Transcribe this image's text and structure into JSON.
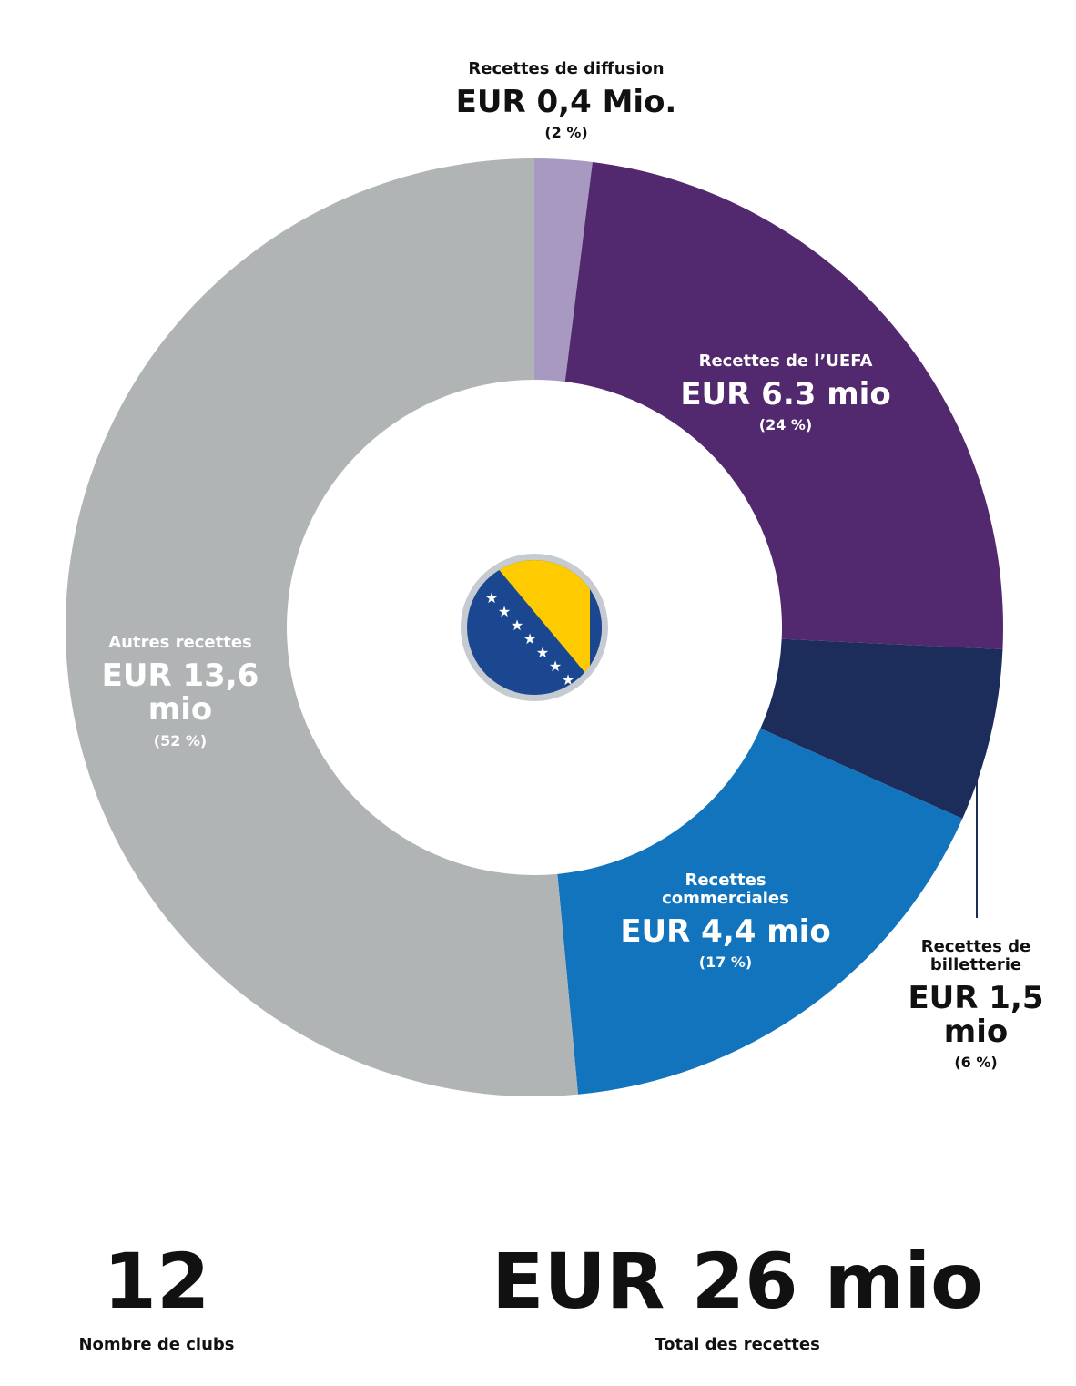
{
  "chart_data": {
    "type": "donut",
    "categories": [
      "Recettes de diffusion",
      "Recettes de l’UEFA",
      "Recettes de billetterie",
      "Recettes commerciales",
      "Autres recettes"
    ],
    "values": [
      2,
      24,
      6,
      17,
      52
    ],
    "value_labels": [
      "(2 %)",
      "(24 %)",
      "(6 %)",
      "(17 %)",
      "(52 %)"
    ],
    "amount_labels": [
      "EUR 0,4 Mio.",
      "EUR 6.3 mio",
      "EUR 1,5 mio",
      "EUR 4,4 mio",
      "EUR 13,6 mio"
    ],
    "colors": [
      "#a899c1",
      "#52296e",
      "#1c2d5c",
      "#1274bd",
      "#b1b4b5"
    ]
  },
  "stats": {
    "clubs": "12",
    "clubs_label": "Nombre de clubs",
    "total": "EUR 26 mio",
    "total_label": "Total des recettes"
  }
}
